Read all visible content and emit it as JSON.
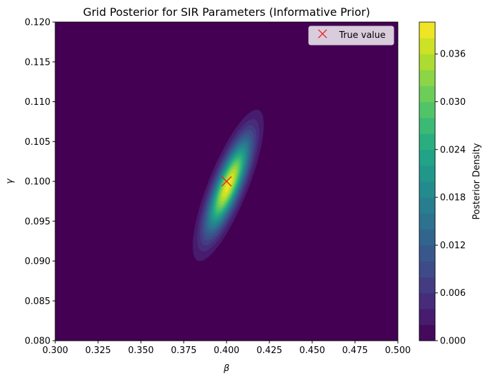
{
  "chart_data": {
    "type": "heatmap",
    "title": "Grid Posterior for SIR Parameters (Informative Prior)",
    "xlabel": "β",
    "ylabel": "γ",
    "xlim": [
      0.3,
      0.5
    ],
    "ylim": [
      0.08,
      0.12
    ],
    "x_ticks": [
      "0.300",
      "0.325",
      "0.350",
      "0.375",
      "0.400",
      "0.425",
      "0.450",
      "0.475",
      "0.500"
    ],
    "y_ticks": [
      "0.080",
      "0.085",
      "0.090",
      "0.095",
      "0.100",
      "0.105",
      "0.110",
      "0.115",
      "0.120"
    ],
    "colorbar": {
      "label": "Posterior Density",
      "min": 0.0,
      "max": 0.04,
      "levels": 20,
      "tick_labels": [
        "0.000",
        "0.006",
        "0.012",
        "0.018",
        "0.024",
        "0.030",
        "0.036"
      ],
      "colormap": "viridis"
    },
    "posterior": {
      "peak_beta": 0.401,
      "peak_gamma": 0.0995,
      "peak_density": 0.039,
      "sd_beta": 0.0085,
      "sd_gamma": 0.0039,
      "correlation": 0.8
    },
    "markers": [
      {
        "label": "True value",
        "beta": 0.4,
        "gamma": 0.1,
        "symbol": "x",
        "color": "#e8282b"
      }
    ],
    "legend": {
      "position": "top-right",
      "entries": [
        "True value"
      ]
    }
  }
}
